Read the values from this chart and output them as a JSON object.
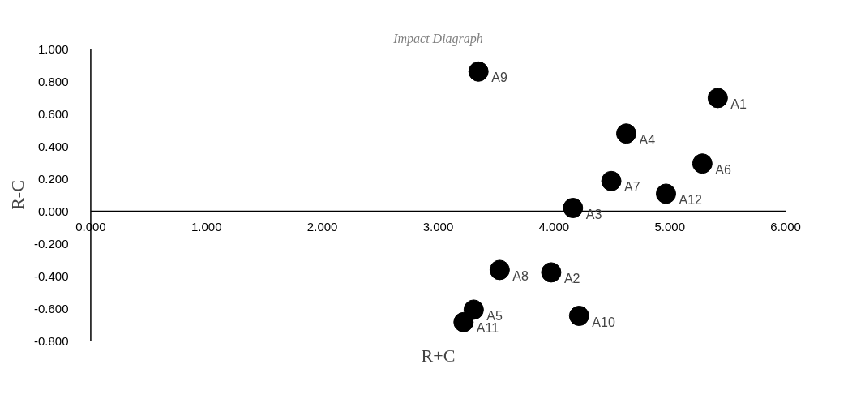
{
  "chart_data": {
    "type": "scatter",
    "title": "Impact Diagraph",
    "xlabel": "R+C",
    "ylabel": "R-C",
    "x": [
      5.414,
      3.976,
      4.164,
      4.624,
      3.307,
      5.281,
      4.495,
      3.531,
      3.348,
      4.217,
      3.219,
      4.967
    ],
    "series": [
      {
        "color": "#000000",
        "values": [
          0.698,
          -0.377,
          0.02,
          0.479,
          -0.607,
          0.294,
          0.186,
          -0.362,
          0.861,
          -0.645,
          -0.684,
          0.108
        ]
      }
    ],
    "annotations": [
      {
        "text": "A1",
        "x": 5.414,
        "y": 0.698
      },
      {
        "text": "A2",
        "x": 3.976,
        "y": -0.377
      },
      {
        "text": "A3",
        "x": 4.164,
        "y": 0.02
      },
      {
        "text": "A4",
        "x": 4.624,
        "y": 0.479
      },
      {
        "text": "A5",
        "x": 3.307,
        "y": -0.607
      },
      {
        "text": "A6",
        "x": 5.281,
        "y": 0.294
      },
      {
        "text": "A7",
        "x": 4.495,
        "y": 0.186
      },
      {
        "text": "A8",
        "x": 3.531,
        "y": -0.362
      },
      {
        "text": "A9",
        "x": 3.348,
        "y": 0.861
      },
      {
        "text": "A10",
        "x": 4.217,
        "y": -0.645
      },
      {
        "text": "A11",
        "x": 3.219,
        "y": -0.684
      },
      {
        "text": "A12",
        "x": 4.967,
        "y": 0.108
      }
    ],
    "xlim": [
      0,
      6
    ],
    "ylim": [
      -0.8,
      1.0
    ],
    "xticks": [
      {
        "value": 0,
        "label": "0.000"
      },
      {
        "value": 1,
        "label": "1.000"
      },
      {
        "value": 2,
        "label": "2.000"
      },
      {
        "value": 3,
        "label": "3.000"
      },
      {
        "value": 4,
        "label": "4.000"
      },
      {
        "value": 5,
        "label": "5.000"
      },
      {
        "value": 6,
        "label": "6.000"
      }
    ],
    "yticks": [
      {
        "value": -0.8,
        "label": "-0.800"
      },
      {
        "value": -0.6,
        "label": "-0.600"
      },
      {
        "value": -0.4,
        "label": "-0.400"
      },
      {
        "value": -0.2,
        "label": "-0.200"
      },
      {
        "value": 0,
        "label": "0.000"
      },
      {
        "value": 0.2,
        "label": "0.200"
      },
      {
        "value": 0.4,
        "label": "0.400"
      },
      {
        "value": 0.6,
        "label": "0.600"
      },
      {
        "value": 0.8,
        "label": "0.800"
      },
      {
        "value": 1.0,
        "label": "1.000"
      }
    ],
    "marker": "circle",
    "grid": false
  }
}
